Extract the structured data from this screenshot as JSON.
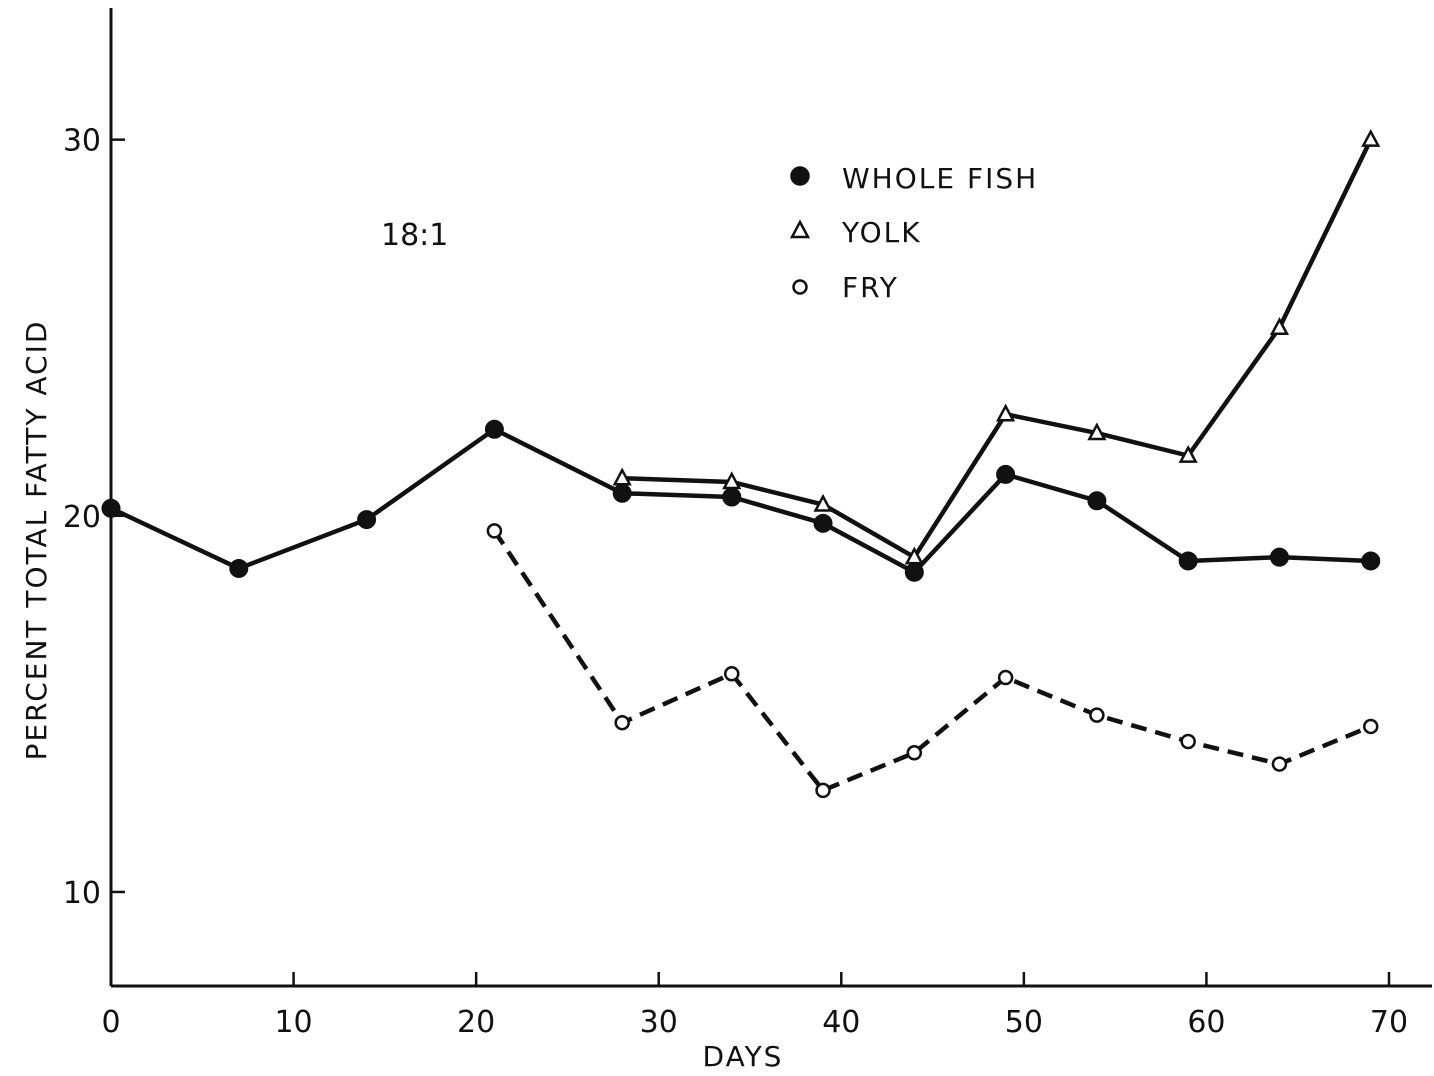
{
  "chart_data": {
    "type": "line",
    "title": "",
    "annotation": "18:1",
    "xlabel": "DAYS",
    "ylabel": "PERCENT TOTAL FATTY ACID",
    "xlim": [
      0,
      70
    ],
    "ylim": [
      7.5,
      33.5
    ],
    "x_ticks": [
      0,
      10,
      20,
      30,
      40,
      50,
      60,
      70
    ],
    "x_tick_labels": [
      "0",
      "10",
      "20",
      "30",
      "40",
      "50",
      "60",
      "70"
    ],
    "y_ticks": [
      10,
      20,
      30
    ],
    "y_tick_labels": [
      "10",
      "20",
      "30"
    ],
    "grid": false,
    "legend_position": "top-center",
    "series": [
      {
        "name": "WHOLE FISH",
        "marker": "filled-circle",
        "line": "solid",
        "color": "#111111",
        "x": [
          0,
          7,
          14,
          21,
          28,
          34,
          39,
          44,
          49,
          54,
          59,
          64,
          69
        ],
        "y": [
          20.2,
          18.6,
          19.9,
          22.3,
          20.6,
          20.5,
          19.8,
          18.5,
          21.1,
          20.4,
          18.8,
          18.9,
          18.8
        ]
      },
      {
        "name": "YOLK",
        "marker": "open-triangle",
        "line": "solid",
        "color": "#111111",
        "x": [
          28,
          34,
          39,
          44,
          49,
          54,
          59,
          64,
          69
        ],
        "y": [
          21.0,
          20.9,
          20.3,
          18.9,
          22.7,
          22.2,
          21.6,
          25.0,
          30.0
        ]
      },
      {
        "name": "FRY",
        "marker": "open-circle",
        "line": "dashed",
        "color": "#111111",
        "x": [
          21,
          28,
          34,
          39,
          44,
          49,
          54,
          59,
          64,
          69
        ],
        "y": [
          19.6,
          14.5,
          15.8,
          12.7,
          13.7,
          15.7,
          14.7,
          14.0,
          13.4,
          14.4
        ]
      }
    ]
  }
}
